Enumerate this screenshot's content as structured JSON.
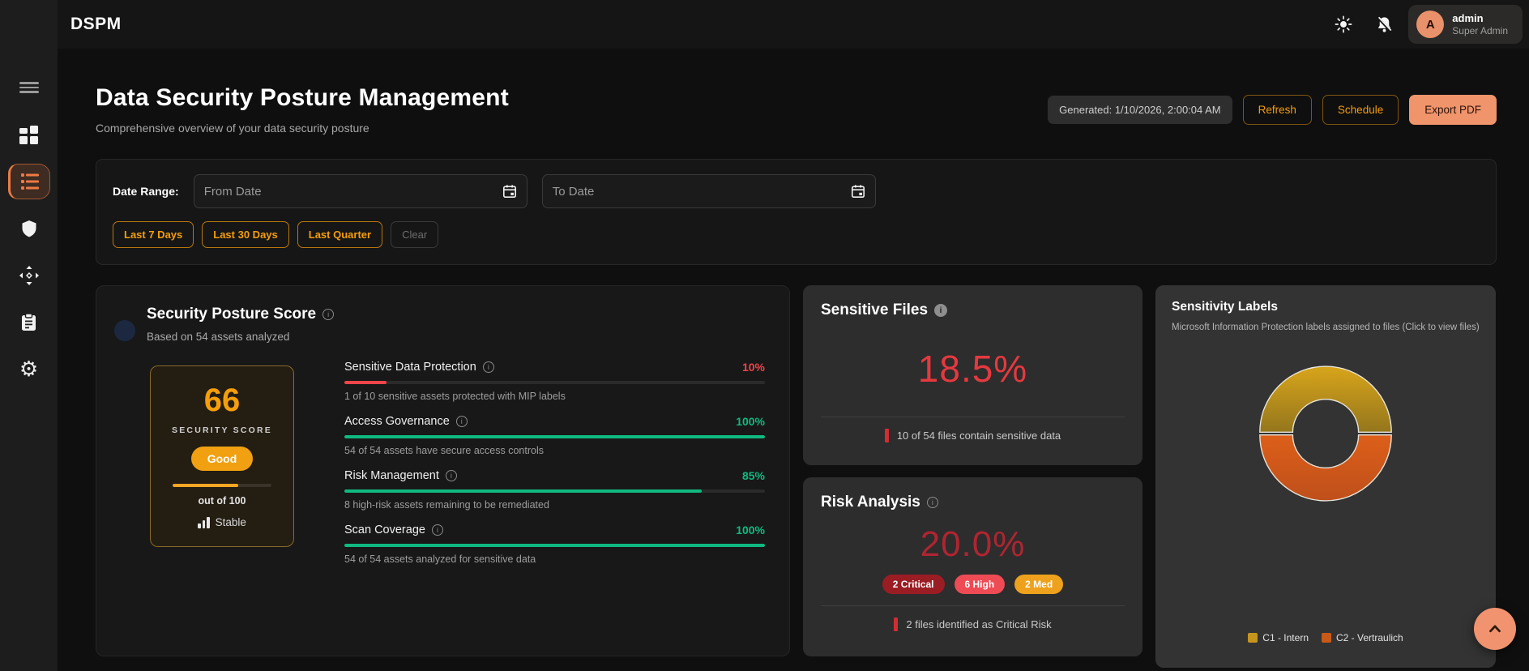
{
  "app": {
    "brand": "DSPM"
  },
  "topbar": {
    "user": {
      "initial": "A",
      "name": "admin",
      "role": "Super Admin"
    }
  },
  "sidebar": {
    "items": [
      {
        "icon": "menu-icon"
      },
      {
        "icon": "dashboard-grid-icon"
      },
      {
        "icon": "report-list-icon",
        "active": true
      },
      {
        "icon": "shield-icon"
      },
      {
        "icon": "move-arrows-icon"
      },
      {
        "icon": "clipboard-icon"
      },
      {
        "icon": "gear-icon"
      }
    ]
  },
  "header": {
    "title": "Data Security Posture Management",
    "subtitle": "Comprehensive overview of your data security posture",
    "generated": "Generated: 1/10/2026, 2:00:04 AM",
    "refresh_label": "Refresh",
    "schedule_label": "Schedule",
    "export_label": "Export PDF"
  },
  "date_filter": {
    "label": "Date Range:",
    "from_placeholder": "From Date",
    "to_placeholder": "To Date",
    "quick_1": "Last 7 Days",
    "quick_2": "Last 30 Days",
    "quick_3": "Last Quarter",
    "clear_label": "Clear"
  },
  "posture": {
    "title": "Security Posture Score",
    "subtitle": "Based on 54 assets analyzed",
    "score": "66",
    "score_pct": 66,
    "score_label": "SECURITY SCORE",
    "rating": "Good",
    "out_of": "out of 100",
    "trend": "Stable",
    "metrics": [
      {
        "label": "Sensitive Data Protection",
        "value": "10%",
        "pct": 10,
        "color": "#ef4449",
        "caption": "1 of 10 sensitive assets protected with MIP labels"
      },
      {
        "label": "Access Governance",
        "value": "100%",
        "pct": 100,
        "color": "#10b981",
        "caption": "54 of 54 assets have secure access controls"
      },
      {
        "label": "Risk Management",
        "value": "85%",
        "pct": 85,
        "color": "#10b981",
        "caption": "8 high-risk assets remaining to be remediated"
      },
      {
        "label": "Scan Coverage",
        "value": "100%",
        "pct": 100,
        "color": "#10b981",
        "caption": "54 of 54 assets analyzed for sensitive data"
      }
    ]
  },
  "sensitive_files": {
    "title": "Sensitive Files",
    "value": "18.5%",
    "caption": "10 of 54 files contain sensitive data"
  },
  "risk_analysis": {
    "title": "Risk Analysis",
    "value": "20.0%",
    "badges": [
      {
        "label": "2 Critical",
        "color": "#9b1d24"
      },
      {
        "label": "6 High",
        "color": "#ee4b55"
      },
      {
        "label": "2 Med",
        "color": "#eea11c"
      }
    ],
    "caption": "2 files identified as Critical Risk"
  },
  "sensitivity_labels": {
    "title": "Sensitivity Labels",
    "subtitle": "Microsoft Information Protection labels assigned to files (Click to view files)",
    "chart_data": {
      "type": "pie",
      "labels": [
        "C1 - Intern",
        "C2 - Vertraulich"
      ],
      "values": [
        50,
        50
      ],
      "colors": [
        "#c6951d",
        "#c75a18"
      ],
      "legend_position": "bottom"
    },
    "legend": [
      {
        "label": "C1 - Intern",
        "color": "#c6951d"
      },
      {
        "label": "C2 - Vertraulich",
        "color": "#c75a18"
      }
    ]
  }
}
